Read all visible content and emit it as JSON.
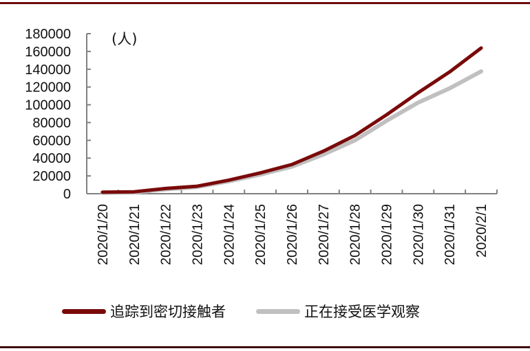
{
  "chart_data": {
    "type": "line",
    "title": "",
    "unit_label": "(人)",
    "xlabel": "",
    "ylabel": "(人)",
    "ylim": [
      0,
      180000
    ],
    "yticks": [
      0,
      20000,
      40000,
      60000,
      80000,
      100000,
      120000,
      140000,
      160000,
      180000
    ],
    "grid": false,
    "legend_position": "bottom",
    "categories": [
      "2020/1/20",
      "2020/1/21",
      "2020/1/22",
      "2020/1/23",
      "2020/1/24",
      "2020/1/25",
      "2020/1/26",
      "2020/1/27",
      "2020/1/28",
      "2020/1/29",
      "2020/1/30",
      "2020/1/31",
      "2020/2/1"
    ],
    "series": [
      {
        "name": "追踪到密切接触者",
        "color": "#7a0a0a",
        "values": [
          1739,
          2197,
          5897,
          8420,
          15197,
          23431,
          32799,
          47833,
          65537,
          88693,
          113579,
          136987,
          163844
        ]
      },
      {
        "name": "正在接受医学观察",
        "color": "#c0c0c0",
        "values": [
          922,
          1394,
          4928,
          7545,
          13967,
          21556,
          30453,
          44132,
          59990,
          81947,
          102427,
          118478,
          137594
        ]
      }
    ]
  },
  "legend": {
    "items": [
      {
        "label": "追踪到密切接触者",
        "color": "#7a0a0a"
      },
      {
        "label": "正在接受医学观察",
        "color": "#c0c0c0"
      }
    ]
  },
  "frame": {
    "top_border_color": "#6b0a0a",
    "bottom_border_color": "#3d0a0a"
  }
}
